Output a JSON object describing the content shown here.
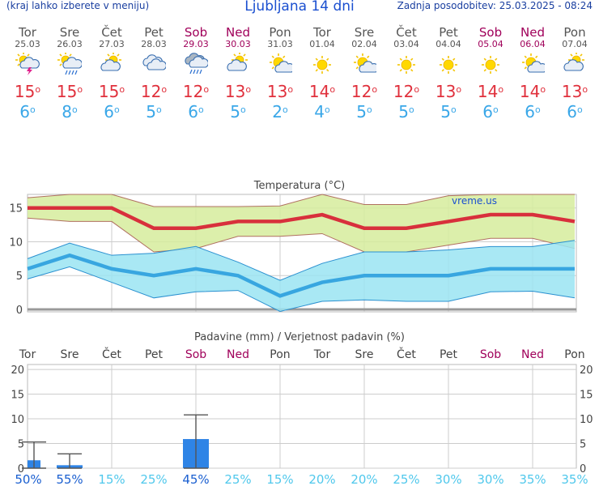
{
  "header": {
    "hint": "(kraj lahko izberete v meniju)",
    "title": "Ljubljana 14 dni",
    "updated": "Zadnja posodobitev: 25.03.2025 - 08:24"
  },
  "forecast": [
    {
      "day": "Tor",
      "date": "25.03",
      "max": "15",
      "min": "6",
      "weekend": false,
      "icon": "sun-cloud-thunder-icon"
    },
    {
      "day": "Sre",
      "date": "26.03",
      "max": "15",
      "min": "8",
      "weekend": false,
      "icon": "sun-cloud-rain-icon"
    },
    {
      "day": "Čet",
      "date": "27.03",
      "max": "15",
      "min": "6",
      "weekend": false,
      "icon": "sun-cloud-icon"
    },
    {
      "day": "Pet",
      "date": "28.03",
      "max": "12",
      "min": "5",
      "weekend": false,
      "icon": "cloud-icon"
    },
    {
      "day": "Sob",
      "date": "29.03",
      "max": "12",
      "min": "6",
      "weekend": true,
      "icon": "cloud-rain-icon"
    },
    {
      "day": "Ned",
      "date": "30.03",
      "max": "13",
      "min": "5",
      "weekend": true,
      "icon": "sun-cloud-icon"
    },
    {
      "day": "Pon",
      "date": "31.03",
      "max": "13",
      "min": "2",
      "weekend": false,
      "icon": "sun-small-cloud-icon"
    },
    {
      "day": "Tor",
      "date": "01.04",
      "max": "14",
      "min": "4",
      "weekend": false,
      "icon": "sun-icon"
    },
    {
      "day": "Sre",
      "date": "02.04",
      "max": "12",
      "min": "5",
      "weekend": false,
      "icon": "sun-small-cloud-icon"
    },
    {
      "day": "Čet",
      "date": "03.04",
      "max": "12",
      "min": "5",
      "weekend": false,
      "icon": "sun-icon"
    },
    {
      "day": "Pet",
      "date": "04.04",
      "max": "13",
      "min": "5",
      "weekend": false,
      "icon": "sun-icon"
    },
    {
      "day": "Sob",
      "date": "05.04",
      "max": "14",
      "min": "6",
      "weekend": true,
      "icon": "sun-icon"
    },
    {
      "day": "Ned",
      "date": "06.04",
      "max": "14",
      "min": "6",
      "weekend": true,
      "icon": "sun-small-cloud-icon"
    },
    {
      "day": "Pon",
      "date": "07.04",
      "max": "13",
      "min": "6",
      "weekend": false,
      "icon": "sun-cloud-icon"
    }
  ],
  "colors": {
    "max_line": "#d8303c",
    "max_band": "#d6ec9c",
    "min_line": "#38a6e0",
    "min_band": "#9ae4f2",
    "bar": "#2e84e6",
    "weekend": "#a0005a",
    "grid": "#cccccc",
    "prob_low": "#50c8ec",
    "prob_high": "#1a5fd0"
  },
  "chart_data": [
    {
      "type": "line",
      "title": "Temperatura (°C)",
      "watermark": "vreme.us",
      "ylim": [
        0,
        17
      ],
      "yticks": [
        "0",
        "5",
        "10",
        "15"
      ],
      "categories": [
        "25.03",
        "26.03",
        "27.03",
        "28.03",
        "29.03",
        "30.03",
        "31.03",
        "01.04",
        "02.04",
        "03.04",
        "04.04",
        "05.04",
        "06.04",
        "07.04"
      ],
      "series": [
        {
          "key": "max",
          "values": [
            15,
            15,
            15,
            12,
            12,
            13,
            13,
            14,
            12,
            12,
            13,
            14,
            14,
            13
          ],
          "band_high": [
            16.5,
            17,
            17,
            15.2,
            15.2,
            15.2,
            15.3,
            17,
            15.5,
            15.5,
            16.8,
            17,
            17,
            17
          ],
          "band_low": [
            13.5,
            13,
            13,
            8.5,
            9,
            10.8,
            10.8,
            11.2,
            8.5,
            8.5,
            9.5,
            10.5,
            10.5,
            9
          ]
        },
        {
          "key": "min",
          "values": [
            6,
            8,
            6,
            5,
            6,
            5,
            2,
            4,
            5,
            5,
            5,
            6,
            6,
            6
          ],
          "band_high": [
            7.5,
            9.8,
            8,
            8.3,
            9.3,
            7,
            4.3,
            6.8,
            8.5,
            8.5,
            8.8,
            9.3,
            9.3,
            10.2
          ],
          "band_low": [
            4.5,
            6.3,
            4,
            1.7,
            2.6,
            2.8,
            -0.3,
            1.2,
            1.4,
            1.2,
            1.2,
            2.6,
            2.7,
            1.7
          ]
        }
      ]
    },
    {
      "type": "bar",
      "title": "Padavine (mm) / Verjetnost padavin (%)",
      "ylim": [
        0,
        21
      ],
      "yticks": [
        "0",
        "5",
        "10",
        "15",
        "20"
      ],
      "categories": [
        "Tor",
        "Sre",
        "Čet",
        "Pet",
        "Sob",
        "Ned",
        "Pon",
        "Tor",
        "Sre",
        "Čet",
        "Pet",
        "Sob",
        "Ned",
        "Pon"
      ],
      "values": [
        1.6,
        0.6,
        0,
        0,
        5.9,
        0,
        0,
        0,
        0,
        0,
        0,
        0,
        0,
        0
      ],
      "error_high": [
        5.3,
        2.9,
        0,
        0,
        10.8,
        0,
        0,
        0,
        0,
        0,
        0,
        0,
        0,
        0
      ],
      "probability": [
        "50%",
        "55%",
        "15%",
        "25%",
        "45%",
        "25%",
        "15%",
        "20%",
        "20%",
        "25%",
        "30%",
        "30%",
        "35%",
        "35%"
      ]
    }
  ]
}
